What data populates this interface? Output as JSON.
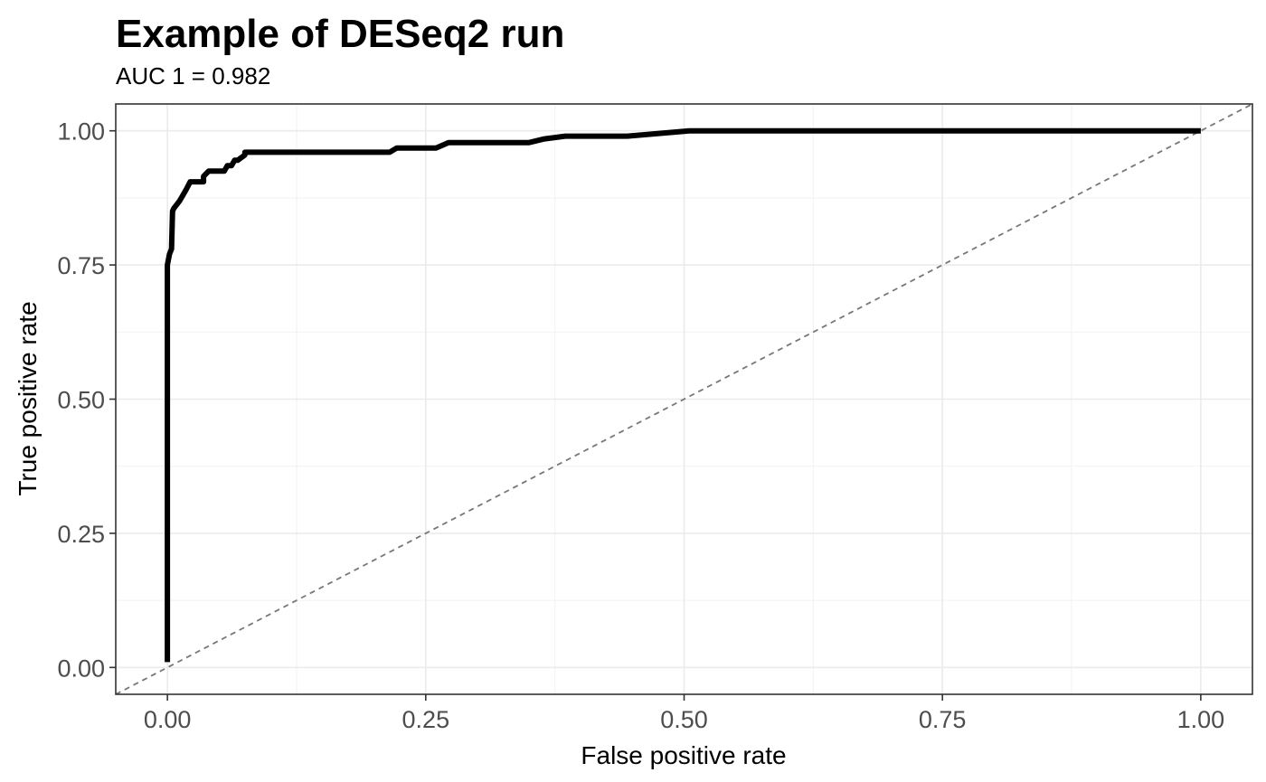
{
  "chart_data": {
    "type": "line",
    "title": "Example of DESeq2 run",
    "subtitle": "AUC 1 = 0.982",
    "xlabel": "False positive rate",
    "ylabel": "True positive rate",
    "xlim": [
      -0.05,
      1.05
    ],
    "ylim": [
      -0.05,
      1.05
    ],
    "x_ticks": [
      0,
      0.25,
      0.5,
      0.75,
      1
    ],
    "x_tick_labels": [
      "0.00",
      "0.25",
      "0.50",
      "0.75",
      "1.00"
    ],
    "y_ticks": [
      0,
      0.25,
      0.5,
      0.75,
      1
    ],
    "y_tick_labels": [
      "0.00",
      "0.25",
      "0.50",
      "0.75",
      "1.00"
    ],
    "grid": true,
    "series": [
      {
        "style": "solid",
        "color": "#000000",
        "x": [
          0,
          0,
          0,
          0.002,
          0.004,
          0.005,
          0.006,
          0.008,
          0.012,
          0.015,
          0.018,
          0.022,
          0.025,
          0.035,
          0.035,
          0.04,
          0.04,
          0.055,
          0.058,
          0.062,
          0.065,
          0.068,
          0.075,
          0.075,
          0.13,
          0.215,
          0.222,
          0.26,
          0.272,
          0.35,
          0.365,
          0.385,
          0.445,
          0.505,
          1.0
        ],
        "y": [
          0.01,
          0.67,
          0.75,
          0.77,
          0.78,
          0.85,
          0.855,
          0.86,
          0.87,
          0.88,
          0.89,
          0.905,
          0.905,
          0.905,
          0.915,
          0.925,
          0.925,
          0.925,
          0.935,
          0.935,
          0.945,
          0.945,
          0.955,
          0.96,
          0.96,
          0.96,
          0.968,
          0.968,
          0.978,
          0.978,
          0.985,
          0.99,
          0.99,
          1.0,
          1.0
        ]
      },
      {
        "style": "dashed",
        "color": "#777777",
        "x": [
          -0.05,
          1.05
        ],
        "y": [
          -0.05,
          1.05
        ]
      }
    ]
  }
}
